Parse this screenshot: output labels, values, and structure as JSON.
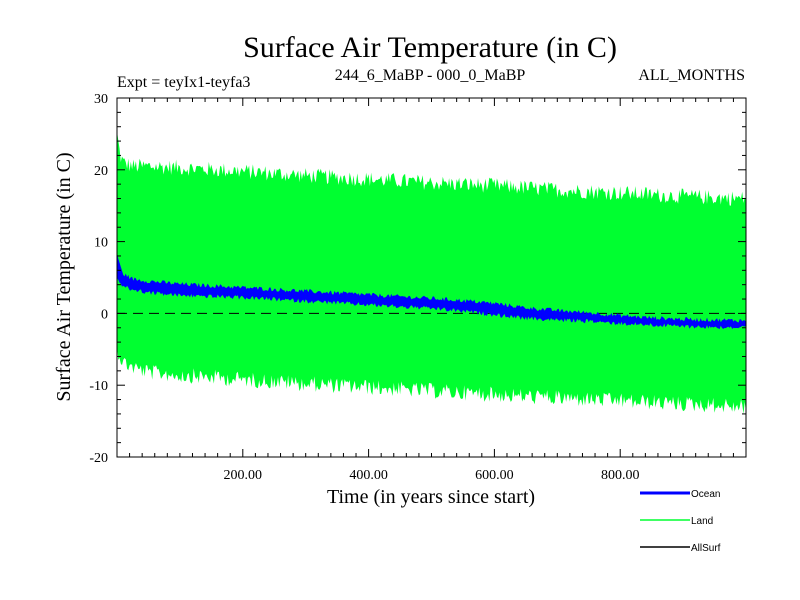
{
  "chart_data": {
    "type": "line",
    "title": "Surface Air Temperature (in C)",
    "subtitle_left": "Expt = teyIx1-teyfa3",
    "subtitle_center": "244_6_MaBP - 000_0_MaBP",
    "subtitle_right": "ALL_MONTHS",
    "xlabel": "Time (in years since start)",
    "ylabel": "Surface Air Temperature (in C)",
    "xlim": [
      0,
      1000
    ],
    "ylim": [
      -20,
      30
    ],
    "x_ticks": [
      200,
      400,
      600,
      800
    ],
    "x_tick_labels": [
      "200.00",
      "400.00",
      "600.00",
      "800.00"
    ],
    "y_ticks": [
      -20,
      -10,
      0,
      10,
      20,
      30
    ],
    "y_tick_labels": [
      "-20",
      "-10",
      "0",
      "10",
      "20",
      "30"
    ],
    "zero_line": true,
    "series": [
      {
        "name": "Land",
        "color": "#00ff30",
        "kind": "band",
        "x": [
          0,
          5,
          10,
          25,
          50,
          100,
          200,
          300,
          400,
          500,
          600,
          700,
          800,
          900,
          1000
        ],
        "upper": [
          25,
          22,
          21,
          20.5,
          20.5,
          20.3,
          19.8,
          19.2,
          18.7,
          18.2,
          17.8,
          17.2,
          16.8,
          16.3,
          16
        ],
        "lower": [
          -5,
          -6,
          -6.8,
          -7.5,
          -8.2,
          -8.6,
          -9.2,
          -9.8,
          -10.3,
          -10.8,
          -11.3,
          -11.8,
          -12.2,
          -12.6,
          -13
        ]
      },
      {
        "name": "Ocean",
        "color": "#0000ff",
        "kind": "band",
        "x": [
          0,
          5,
          10,
          25,
          50,
          100,
          200,
          300,
          400,
          500,
          550,
          600,
          650,
          700,
          750,
          800,
          850,
          900,
          950,
          1000
        ],
        "upper": [
          8.5,
          6.5,
          5.5,
          4.8,
          4.5,
          4.1,
          3.6,
          3.1,
          2.6,
          2.1,
          1.8,
          1.4,
          0.8,
          0.4,
          0.1,
          -0.3,
          -0.6,
          -0.8,
          -0.9,
          -1.0
        ],
        "lower": [
          5.0,
          4.2,
          3.7,
          3.3,
          2.9,
          2.5,
          2.2,
          1.7,
          1.2,
          0.7,
          0.3,
          -0.2,
          -0.7,
          -0.9,
          -1.1,
          -1.4,
          -1.6,
          -1.8,
          -1.9,
          -2.0
        ]
      },
      {
        "name": "AllSurf",
        "color": "#000000",
        "kind": "legend-only"
      }
    ]
  }
}
